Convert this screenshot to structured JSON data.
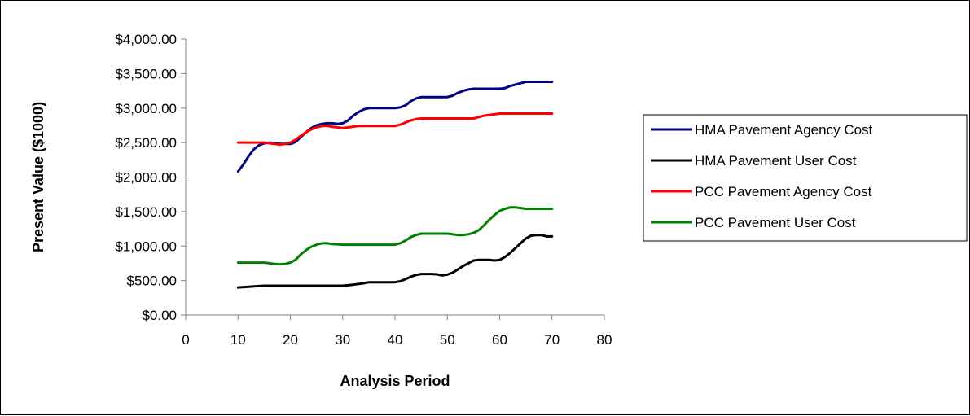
{
  "chart_data": {
    "type": "line",
    "title": "",
    "xlabel": "Analysis Period",
    "ylabel": "Present Value ($1000)",
    "xlim": [
      0,
      80
    ],
    "ylim": [
      0,
      4000
    ],
    "x_ticks": [
      "0",
      "10",
      "20",
      "30",
      "40",
      "50",
      "60",
      "70",
      "80"
    ],
    "x_tick_values": [
      0,
      10,
      20,
      30,
      40,
      50,
      60,
      70,
      80
    ],
    "y_ticks": [
      "$0.00",
      "$500.00",
      "$1,000.00",
      "$1,500.00",
      "$2,000.00",
      "$2,500.00",
      "$3,000.00",
      "$3,500.00",
      "$4,000.00"
    ],
    "y_tick_values": [
      0,
      500,
      1000,
      1500,
      2000,
      2500,
      3000,
      3500,
      4000
    ],
    "grid": false,
    "legend_position": "right",
    "series": [
      {
        "name": "HMA Pavement Agency Cost",
        "color": "#000080",
        "points": [
          [
            10,
            2080
          ],
          [
            11,
            2180
          ],
          [
            12,
            2300
          ],
          [
            13,
            2400
          ],
          [
            14,
            2460
          ],
          [
            15,
            2490
          ],
          [
            16,
            2500
          ],
          [
            17,
            2490
          ],
          [
            18,
            2480
          ],
          [
            19,
            2480
          ],
          [
            20,
            2480
          ],
          [
            21,
            2510
          ],
          [
            22,
            2580
          ],
          [
            23,
            2650
          ],
          [
            24,
            2710
          ],
          [
            25,
            2750
          ],
          [
            26,
            2770
          ],
          [
            27,
            2780
          ],
          [
            28,
            2780
          ],
          [
            29,
            2770
          ],
          [
            30,
            2780
          ],
          [
            31,
            2820
          ],
          [
            32,
            2890
          ],
          [
            33,
            2940
          ],
          [
            34,
            2980
          ],
          [
            35,
            3000
          ],
          [
            36,
            3000
          ],
          [
            37,
            3000
          ],
          [
            38,
            3000
          ],
          [
            39,
            3000
          ],
          [
            40,
            3000
          ],
          [
            41,
            3010
          ],
          [
            42,
            3040
          ],
          [
            43,
            3100
          ],
          [
            44,
            3140
          ],
          [
            45,
            3160
          ],
          [
            46,
            3160
          ],
          [
            47,
            3160
          ],
          [
            48,
            3160
          ],
          [
            49,
            3160
          ],
          [
            50,
            3160
          ],
          [
            51,
            3180
          ],
          [
            52,
            3220
          ],
          [
            53,
            3250
          ],
          [
            54,
            3270
          ],
          [
            55,
            3280
          ],
          [
            56,
            3280
          ],
          [
            57,
            3280
          ],
          [
            58,
            3280
          ],
          [
            59,
            3280
          ],
          [
            60,
            3280
          ],
          [
            61,
            3290
          ],
          [
            62,
            3320
          ],
          [
            63,
            3340
          ],
          [
            64,
            3360
          ],
          [
            65,
            3380
          ],
          [
            66,
            3380
          ],
          [
            67,
            3380
          ],
          [
            68,
            3380
          ],
          [
            69,
            3380
          ],
          [
            70,
            3380
          ]
        ]
      },
      {
        "name": "HMA Pavement User Cost",
        "color": "#000000",
        "points": [
          [
            10,
            400
          ],
          [
            12,
            410
          ],
          [
            14,
            420
          ],
          [
            15,
            425
          ],
          [
            20,
            425
          ],
          [
            25,
            425
          ],
          [
            30,
            425
          ],
          [
            32,
            440
          ],
          [
            34,
            460
          ],
          [
            35,
            475
          ],
          [
            40,
            475
          ],
          [
            41,
            490
          ],
          [
            42,
            520
          ],
          [
            43,
            555
          ],
          [
            44,
            580
          ],
          [
            45,
            595
          ],
          [
            46,
            595
          ],
          [
            47,
            595
          ],
          [
            48,
            590
          ],
          [
            49,
            575
          ],
          [
            50,
            585
          ],
          [
            51,
            615
          ],
          [
            52,
            660
          ],
          [
            53,
            710
          ],
          [
            54,
            750
          ],
          [
            55,
            790
          ],
          [
            56,
            800
          ],
          [
            57,
            800
          ],
          [
            58,
            800
          ],
          [
            59,
            790
          ],
          [
            60,
            800
          ],
          [
            61,
            840
          ],
          [
            62,
            900
          ],
          [
            63,
            970
          ],
          [
            64,
            1040
          ],
          [
            65,
            1110
          ],
          [
            66,
            1150
          ],
          [
            67,
            1160
          ],
          [
            68,
            1160
          ],
          [
            69,
            1140
          ],
          [
            70,
            1140
          ]
        ]
      },
      {
        "name": "PCC Pavement Agency Cost",
        "color": "#ff0000",
        "points": [
          [
            10,
            2500
          ],
          [
            15,
            2500
          ],
          [
            16,
            2490
          ],
          [
            17,
            2480
          ],
          [
            18,
            2470
          ],
          [
            19,
            2480
          ],
          [
            20,
            2500
          ],
          [
            21,
            2540
          ],
          [
            22,
            2600
          ],
          [
            23,
            2650
          ],
          [
            24,
            2690
          ],
          [
            25,
            2720
          ],
          [
            26,
            2740
          ],
          [
            27,
            2740
          ],
          [
            28,
            2730
          ],
          [
            29,
            2720
          ],
          [
            30,
            2710
          ],
          [
            31,
            2720
          ],
          [
            32,
            2730
          ],
          [
            33,
            2740
          ],
          [
            40,
            2740
          ],
          [
            41,
            2760
          ],
          [
            42,
            2790
          ],
          [
            43,
            2820
          ],
          [
            44,
            2840
          ],
          [
            45,
            2850
          ],
          [
            55,
            2850
          ],
          [
            56,
            2870
          ],
          [
            57,
            2890
          ],
          [
            58,
            2900
          ],
          [
            59,
            2910
          ],
          [
            60,
            2920
          ],
          [
            70,
            2920
          ]
        ]
      },
      {
        "name": "PCC Pavement User Cost",
        "color": "#008000",
        "points": [
          [
            10,
            760
          ],
          [
            15,
            760
          ],
          [
            16,
            750
          ],
          [
            17,
            740
          ],
          [
            18,
            735
          ],
          [
            19,
            740
          ],
          [
            20,
            760
          ],
          [
            21,
            800
          ],
          [
            22,
            880
          ],
          [
            23,
            940
          ],
          [
            24,
            990
          ],
          [
            25,
            1020
          ],
          [
            26,
            1040
          ],
          [
            27,
            1040
          ],
          [
            28,
            1030
          ],
          [
            29,
            1025
          ],
          [
            30,
            1020
          ],
          [
            40,
            1020
          ],
          [
            41,
            1040
          ],
          [
            42,
            1080
          ],
          [
            43,
            1130
          ],
          [
            44,
            1160
          ],
          [
            45,
            1180
          ],
          [
            50,
            1180
          ],
          [
            51,
            1170
          ],
          [
            52,
            1160
          ],
          [
            53,
            1160
          ],
          [
            54,
            1170
          ],
          [
            55,
            1190
          ],
          [
            56,
            1230
          ],
          [
            57,
            1300
          ],
          [
            58,
            1380
          ],
          [
            59,
            1450
          ],
          [
            60,
            1510
          ],
          [
            61,
            1540
          ],
          [
            62,
            1560
          ],
          [
            63,
            1560
          ],
          [
            64,
            1550
          ],
          [
            65,
            1540
          ],
          [
            70,
            1540
          ]
        ]
      }
    ]
  }
}
